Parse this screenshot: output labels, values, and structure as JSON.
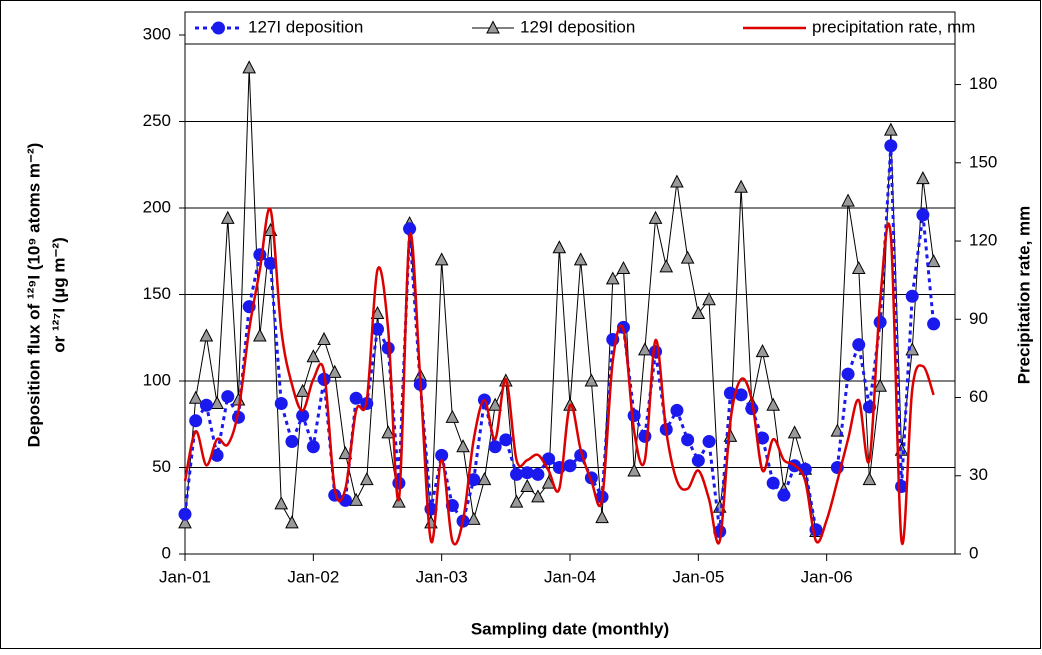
{
  "chart_data": {
    "type": "line",
    "xlabel": "Sampling date (monthly)",
    "ylabel": [
      "Deposition flux of ¹²⁹I (10⁹ atoms m⁻²)",
      "or ¹²⁷I (µg m⁻²)"
    ],
    "y2label": "Precipitation rate, mm",
    "x": [
      0,
      1,
      2,
      3,
      4,
      5,
      6,
      7,
      8,
      9,
      10,
      11,
      12,
      13,
      14,
      15,
      16,
      17,
      18,
      19,
      20,
      21,
      22,
      23,
      24,
      25,
      26,
      27,
      28,
      29,
      30,
      31,
      32,
      33,
      34,
      35,
      36,
      37,
      38,
      39,
      40,
      41,
      42,
      43,
      44,
      45,
      46,
      47,
      48,
      49,
      50,
      51,
      52,
      53,
      54,
      55,
      56,
      57,
      58,
      59,
      60,
      61,
      62,
      63,
      64,
      65,
      66,
      67,
      68,
      69,
      70
    ],
    "xlim": [
      0,
      72
    ],
    "xticks": [
      {
        "value": 0,
        "label": "Jan-01"
      },
      {
        "value": 12,
        "label": "Jan-02"
      },
      {
        "value": 24,
        "label": "Jan-03"
      },
      {
        "value": 36,
        "label": "Jan-04"
      },
      {
        "value": 48,
        "label": "Jan-05"
      },
      {
        "value": 60,
        "label": "Jan-06"
      }
    ],
    "ylim": [
      0,
      300
    ],
    "yticks": [
      0,
      50,
      100,
      150,
      200,
      250,
      300
    ],
    "y2lim": [
      0,
      199
    ],
    "y2ticks": [
      0,
      30,
      60,
      90,
      120,
      150,
      180
    ],
    "grid": true,
    "legend": "top",
    "series": [
      {
        "name": "127I deposition",
        "color": "#1a1aee",
        "marker": "circle",
        "line": "dotted",
        "values": [
          23,
          77,
          86,
          57,
          91,
          79,
          143,
          173,
          168,
          87,
          65,
          80,
          62,
          101,
          34,
          31,
          90,
          87,
          130,
          119,
          41,
          188,
          98,
          26,
          57,
          28,
          19,
          43,
          89,
          62,
          66,
          46,
          47,
          46,
          55,
          50,
          51,
          57,
          44,
          33,
          124,
          131,
          80,
          68,
          117,
          72,
          83,
          66,
          54,
          65,
          13,
          93,
          92,
          84,
          67,
          41,
          34,
          51,
          49,
          14,
          null,
          50,
          104,
          121,
          85,
          134,
          236,
          39,
          149,
          196,
          133
        ]
      },
      {
        "name": "129I deposition",
        "color": "#000000",
        "marker": "triangle",
        "line": "solid",
        "values": [
          18,
          90,
          126,
          87,
          194,
          89,
          281,
          126,
          187,
          29,
          18,
          94,
          114,
          124,
          105,
          58,
          31,
          43,
          139,
          70,
          30,
          191,
          103,
          18,
          170,
          79,
          62,
          20,
          43,
          86,
          100,
          30,
          39,
          33,
          41,
          177,
          86,
          170,
          100,
          21,
          159,
          165,
          48,
          118,
          194,
          166,
          215,
          171,
          139,
          147,
          27,
          68,
          212,
          87,
          117,
          86,
          37,
          70,
          49,
          13,
          null,
          71,
          204,
          165,
          43,
          97,
          245,
          60,
          118,
          217,
          169
        ]
      },
      {
        "name": "precipitation rate, mm",
        "color": "#dd0000",
        "marker": "none",
        "line": "smooth",
        "axis": "y2",
        "values": [
          28,
          47,
          34,
          44,
          42,
          55,
          86,
          109,
          132,
          86,
          65,
          55,
          67,
          70,
          25,
          25,
          55,
          59,
          109,
          86,
          21,
          122,
          67,
          5,
          36,
          5,
          13,
          44,
          59,
          44,
          67,
          36,
          36,
          38,
          32,
          25,
          57,
          40,
          28,
          21,
          74,
          86,
          47,
          36,
          82,
          47,
          28,
          25,
          32,
          21,
          5,
          51,
          67,
          59,
          32,
          44,
          36,
          34,
          28,
          5,
          13,
          28,
          44,
          59,
          36,
          97,
          122,
          5,
          63,
          72,
          61
        ]
      }
    ]
  }
}
